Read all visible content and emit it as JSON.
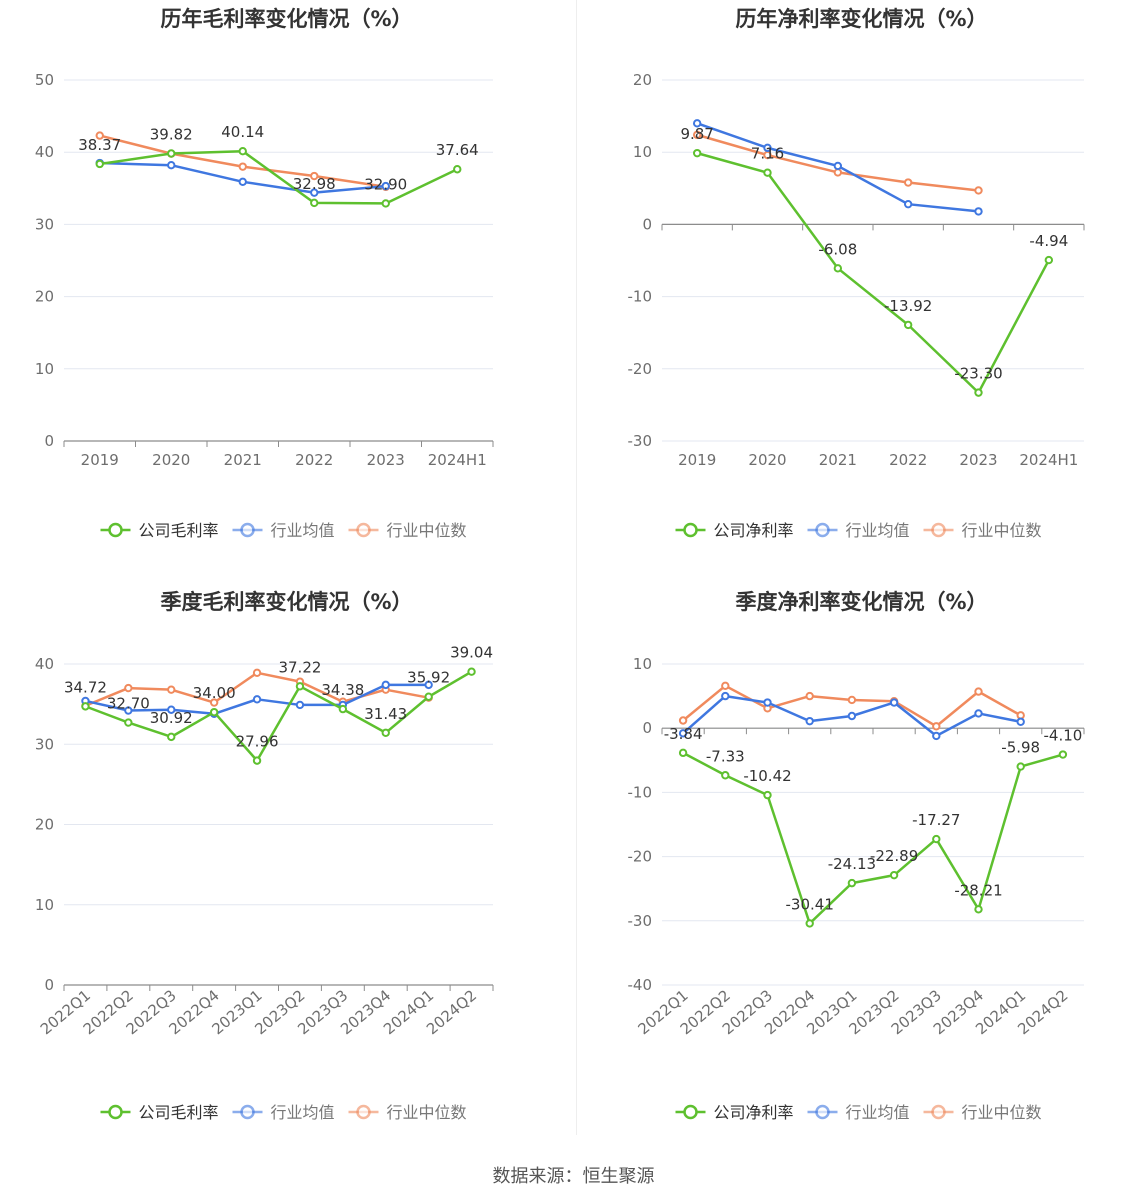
{
  "colors": {
    "company": "#5ec02f",
    "industry_avg": "#3f77e0",
    "industry_median": "#f08a5d",
    "grid": "#e3e7f0",
    "axis": "#8c8c8c",
    "tick_text": "#6e6e6e",
    "title_text": "#333333"
  },
  "source": "数据来源：恒生聚源",
  "chart_data": [
    {
      "type": "line",
      "title": "历年毛利率变化情况（%）",
      "categories": [
        "2019",
        "2020",
        "2021",
        "2022",
        "2023",
        "2024H1"
      ],
      "ylim": [
        0,
        50
      ],
      "yticks": [
        0,
        10,
        20,
        30,
        40,
        50
      ],
      "grid": true,
      "legend_position": "bottom",
      "series": [
        {
          "name": "公司毛利率",
          "values": [
            38.37,
            39.82,
            40.14,
            32.98,
            32.9,
            37.64
          ],
          "labels": [
            "38.37",
            "39.82",
            "40.14",
            "32.98",
            "32.90",
            "37.64"
          ]
        },
        {
          "name": "行业均值",
          "values": [
            38.5,
            38.2,
            35.9,
            34.4,
            35.3,
            null
          ]
        },
        {
          "name": "行业中位数",
          "values": [
            42.3,
            39.8,
            38.0,
            36.7,
            35.2,
            null
          ]
        }
      ]
    },
    {
      "type": "line",
      "title": "历年净利率变化情况（%）",
      "categories": [
        "2019",
        "2020",
        "2021",
        "2022",
        "2023",
        "2024H1"
      ],
      "ylim": [
        -30,
        20
      ],
      "yticks": [
        -30,
        -20,
        -10,
        0,
        10,
        20
      ],
      "grid": true,
      "legend_position": "bottom",
      "series": [
        {
          "name": "公司净利率",
          "values": [
            9.87,
            7.16,
            -6.08,
            -13.92,
            -23.3,
            -4.94
          ],
          "labels": [
            "9.87",
            "7.16",
            "-6.08",
            "-13.92",
            "-23.30",
            "-4.94"
          ]
        },
        {
          "name": "行业均值",
          "values": [
            14.0,
            10.6,
            8.1,
            2.8,
            1.8,
            null
          ]
        },
        {
          "name": "行业中位数",
          "values": [
            12.4,
            9.6,
            7.2,
            5.8,
            4.7,
            null
          ]
        }
      ]
    },
    {
      "type": "line",
      "title": "季度毛利率变化情况（%）",
      "categories": [
        "2022Q1",
        "2022Q2",
        "2022Q3",
        "2022Q4",
        "2023Q1",
        "2023Q2",
        "2023Q3",
        "2023Q4",
        "2024Q1",
        "2024Q2"
      ],
      "ylim": [
        0,
        40
      ],
      "yticks": [
        0,
        10,
        20,
        30,
        40
      ],
      "grid": true,
      "legend_position": "bottom",
      "series": [
        {
          "name": "公司毛利率",
          "values": [
            34.72,
            32.7,
            30.92,
            34.0,
            27.96,
            37.22,
            34.38,
            31.43,
            35.92,
            39.04
          ],
          "labels": [
            "34.72",
            "32.70",
            "30.92",
            "34.00",
            "27.96",
            "37.22",
            "34.38",
            "31.43",
            "35.92",
            "39.04"
          ]
        },
        {
          "name": "行业均值",
          "values": [
            35.4,
            34.2,
            34.3,
            33.8,
            35.6,
            34.9,
            34.9,
            37.4,
            37.4,
            null
          ]
        },
        {
          "name": "行业中位数",
          "values": [
            34.8,
            37.0,
            36.8,
            35.2,
            38.9,
            37.8,
            35.3,
            36.8,
            35.8,
            null
          ]
        }
      ]
    },
    {
      "type": "line",
      "title": "季度净利率变化情况（%）",
      "categories": [
        "2022Q1",
        "2022Q2",
        "2022Q3",
        "2022Q4",
        "2023Q1",
        "2023Q2",
        "2023Q3",
        "2023Q4",
        "2024Q1",
        "2024Q2"
      ],
      "ylim": [
        -40,
        10
      ],
      "yticks": [
        -40,
        -30,
        -20,
        -10,
        0,
        10
      ],
      "grid": true,
      "legend_position": "bottom",
      "series": [
        {
          "name": "公司净利率",
          "values": [
            -3.84,
            -7.33,
            -10.42,
            -30.41,
            -24.13,
            -22.89,
            -17.27,
            -28.21,
            -5.98,
            -4.1
          ],
          "labels": [
            "-3.84",
            "-7.33",
            "-10.42",
            "-30.41",
            "-24.13",
            "-22.89",
            "-17.27",
            "-28.21",
            "-5.98",
            "-4.10"
          ]
        },
        {
          "name": "行业均值",
          "values": [
            -0.8,
            5.0,
            4.0,
            1.1,
            1.9,
            4.0,
            -1.2,
            2.3,
            1.0,
            null
          ]
        },
        {
          "name": "行业中位数",
          "values": [
            1.2,
            6.6,
            3.1,
            5.0,
            4.4,
            4.2,
            0.3,
            5.7,
            2.0,
            null
          ]
        }
      ]
    }
  ]
}
